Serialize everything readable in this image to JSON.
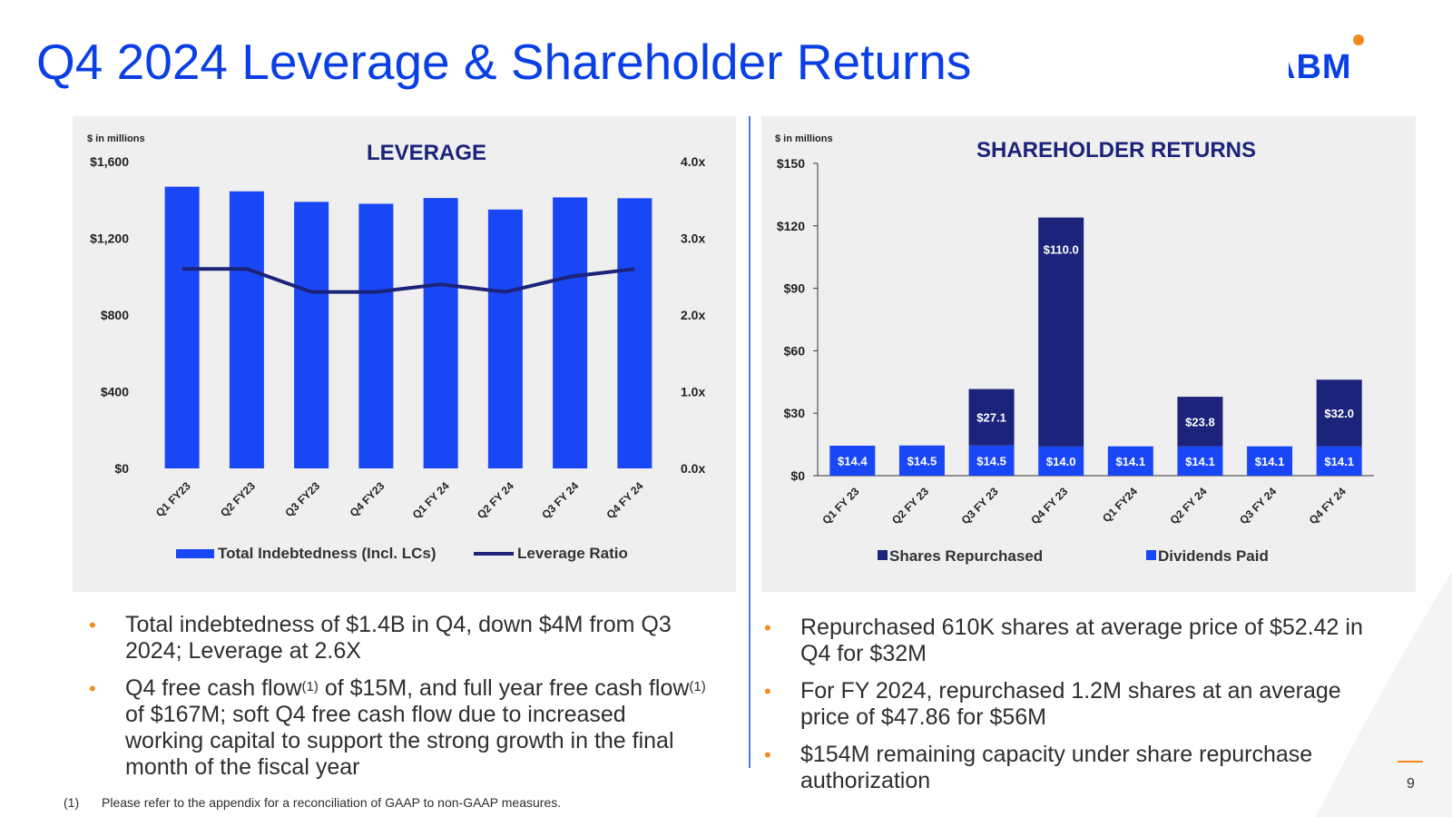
{
  "slide": {
    "title": "Q4 2024 Leverage & Shareholder Returns",
    "logo_text": "ABM",
    "page_number": "9",
    "footnote_num": "(1)",
    "footnote_text": "Please refer to the appendix for a reconciliation of GAAP to non-GAAP measures."
  },
  "colors": {
    "brand_blue": "#0a3fe6",
    "bar_blue": "#1a47f5",
    "navy": "#1b237a",
    "accent_orange": "#f28a1b",
    "panel_bg": "#efefef"
  },
  "chart_data": [
    {
      "type": "bar",
      "title": "LEVERAGE",
      "unit_note": "$ in millions",
      "categories": [
        "Q1 FY23",
        "Q2 FY23",
        "Q3 FY23",
        "Q4 FY23",
        "Q1 FY 24",
        "Q2 FY 24",
        "Q3 FY 24",
        "Q4 FY 24"
      ],
      "series": [
        {
          "name": "Total Indebtedness (Incl. LCs)",
          "type": "bar",
          "axis": "left",
          "values": [
            1469,
            1445,
            1390,
            1380,
            1410,
            1350,
            1413,
            1409
          ]
        },
        {
          "name": "Leverage Ratio",
          "type": "line",
          "axis": "right",
          "values": [
            2.6,
            2.6,
            2.3,
            2.3,
            2.4,
            2.3,
            2.5,
            2.6
          ]
        }
      ],
      "ylim": [
        0,
        1600
      ],
      "y_ticks": [
        "$0",
        "$400",
        "$800",
        "$1,200",
        "$1,600"
      ],
      "y2lim": [
        0,
        4
      ],
      "y2_ticks": [
        "0.0x",
        "1.0x",
        "2.0x",
        "3.0x",
        "4.0x"
      ],
      "legend_position": "bottom"
    },
    {
      "type": "bar",
      "stacked": true,
      "title": "SHAREHOLDER RETURNS",
      "unit_note": "$ in millions",
      "categories": [
        "Q1 FY 23",
        "Q2 FY 23",
        "Q3 FY 23",
        "Q4 FY 23",
        "Q1 FY24",
        "Q2 FY 24",
        "Q3 FY 24",
        "Q4 FY 24"
      ],
      "series": [
        {
          "name": "Dividends Paid",
          "values": [
            14.4,
            14.5,
            14.5,
            14.0,
            14.1,
            14.1,
            14.1,
            14.1
          ],
          "labels": [
            "$14.4",
            "$14.5",
            "$14.5",
            "$14.0",
            "$14.1",
            "$14.1",
            "$14.1",
            "$14.1"
          ]
        },
        {
          "name": "Shares Repurchased",
          "values": [
            0,
            0,
            27.1,
            110.0,
            0,
            23.8,
            0,
            32.0
          ],
          "labels": [
            "",
            "",
            "$27.1",
            "$110.0",
            "",
            "$23.8",
            "",
            "$32.0"
          ]
        }
      ],
      "ylim": [
        0,
        150
      ],
      "y_ticks": [
        "$0",
        "$30",
        "$60",
        "$90",
        "$120",
        "$150"
      ],
      "legend_order": [
        "Shares Repurchased",
        "Dividends Paid"
      ],
      "legend_position": "bottom"
    }
  ],
  "bullets_left": [
    {
      "text": "Total indebtedness of $1.4B in Q4, down $4M from Q3 2024; Leverage at 2.6X"
    },
    {
      "part1": "Q4 free cash flow",
      "sup1": "(1)",
      "part2": " of $15M, and full year free cash flow",
      "sup2": "(1)",
      "part3": " of $167M; soft Q4 free cash flow due to increased working capital to support the strong growth in the final month of the fiscal year"
    }
  ],
  "bullets_right": [
    {
      "text": "Repurchased 610K shares at average price of $52.42 in Q4 for $32M"
    },
    {
      "text": "For FY 2024, repurchased 1.2M shares at an average price of $47.86 for $56M"
    },
    {
      "text": "$154M remaining capacity under share repurchase authorization"
    }
  ]
}
